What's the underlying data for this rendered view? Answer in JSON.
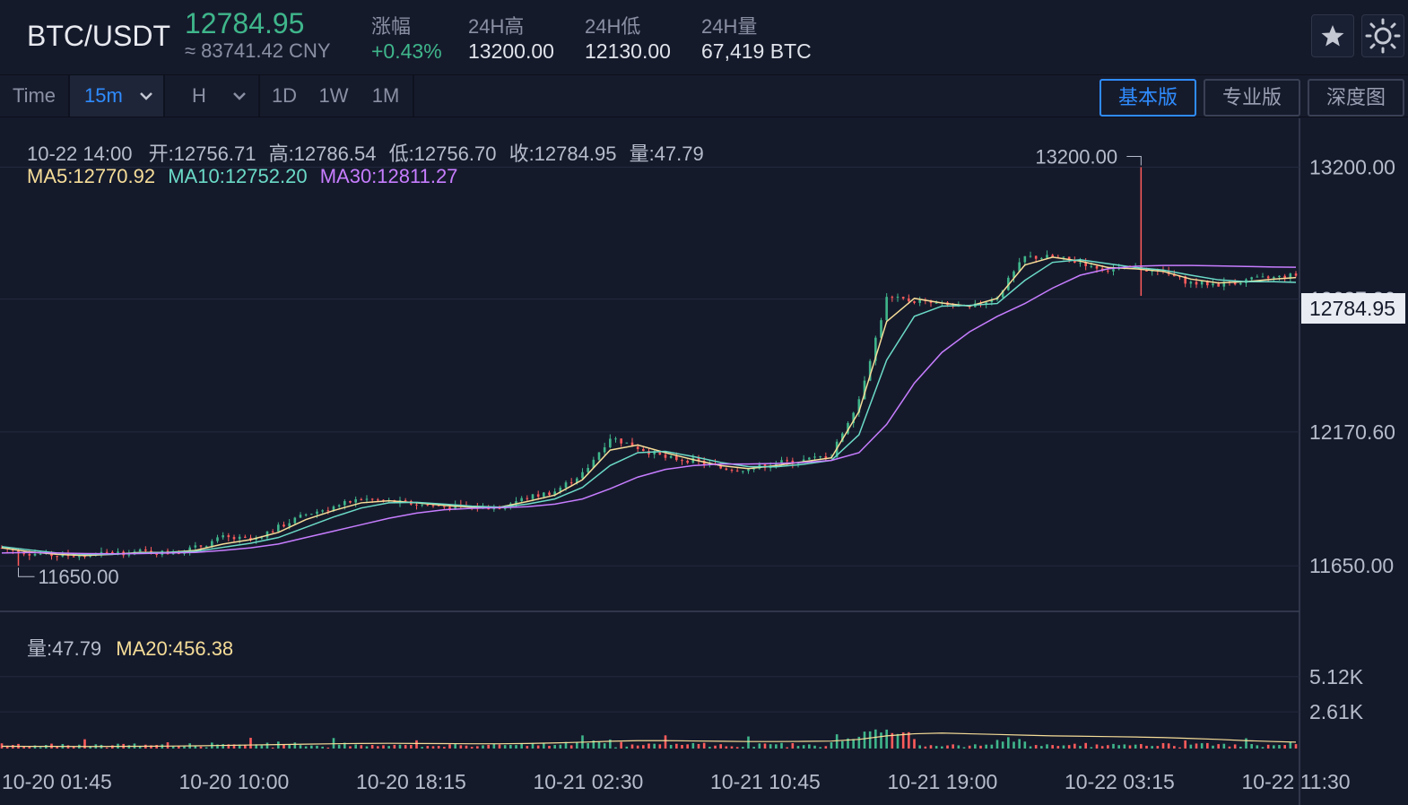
{
  "header": {
    "pair": "BTC/USDT",
    "last_price": "12784.95",
    "cny_price": "≈ 83741.42 CNY",
    "stats": [
      {
        "label": "涨幅",
        "value": "+0.43%",
        "color": "#3fb68b"
      },
      {
        "label": "24H高",
        "value": "13200.00",
        "color": "#e0e3ea"
      },
      {
        "label": "24H低",
        "value": "12130.00",
        "color": "#e0e3ea"
      },
      {
        "label": "24H量",
        "value": "67,419 BTC",
        "color": "#e0e3ea"
      }
    ],
    "favorite_icon": "star-icon",
    "theme_icon": "sun-icon"
  },
  "toolbar": {
    "intervals": [
      "Time",
      "15m",
      "H",
      "1D",
      "1W",
      "1M"
    ],
    "active_interval": "15m",
    "views": [
      "基本版",
      "专业版",
      "深度图"
    ],
    "active_view": "基本版"
  },
  "ohlc_info": {
    "time": "10-22 14:00",
    "open": "开:12756.71",
    "high": "高:12786.54",
    "low": "低:12756.70",
    "close": "收:12784.95",
    "volume": "量:47.79"
  },
  "ma_info": {
    "ma5": "MA5:12770.92",
    "ma10": "MA10:12752.20",
    "ma30": "MA30:12811.27"
  },
  "volume_info": {
    "volume": "量:47.79",
    "ma20": "MA20:456.38"
  },
  "colors": {
    "up": "#3fb68b",
    "down": "#ff5b5b",
    "ma5": "#f6dd98",
    "ma10": "#6bdac7",
    "ma30": "#c77dff",
    "accent": "#2f8cff",
    "background": "#151a2b"
  },
  "chart_data": {
    "type": "line",
    "price_axis_ticks": [
      "13200.00",
      "12687.26",
      "12170.60",
      "11650.00"
    ],
    "current_price_label": "12784.95",
    "volume_axis_ticks": [
      "5.12K",
      "2.61K"
    ],
    "x_ticks": [
      "10-20 01:45",
      "10-20 10:00",
      "10-20 18:15",
      "10-21 02:30",
      "10-21 10:45",
      "10-21 19:00",
      "10-22 03:15",
      "10-22 11:30"
    ],
    "max_marker": "13200.00",
    "min_marker": "11650.00",
    "ylim": [
      11480,
      13390
    ],
    "volume_ylim": [
      0,
      6000
    ],
    "price_path": [
      [
        0,
        11720
      ],
      [
        10,
        11700
      ],
      [
        20,
        11690
      ],
      [
        30,
        11690
      ],
      [
        40,
        11700
      ],
      [
        50,
        11705
      ],
      [
        60,
        11700
      ],
      [
        70,
        11720
      ],
      [
        80,
        11760
      ],
      [
        90,
        11750
      ],
      [
        100,
        11800
      ],
      [
        110,
        11850
      ],
      [
        120,
        11880
      ],
      [
        130,
        11910
      ],
      [
        140,
        11900
      ],
      [
        150,
        11890
      ],
      [
        160,
        11880
      ],
      [
        170,
        11875
      ],
      [
        180,
        11880
      ],
      [
        190,
        11915
      ],
      [
        200,
        11940
      ],
      [
        210,
        12010
      ],
      [
        220,
        12150
      ],
      [
        230,
        12110
      ],
      [
        240,
        12070
      ],
      [
        250,
        12060
      ],
      [
        260,
        12030
      ],
      [
        270,
        12025
      ],
      [
        280,
        12050
      ],
      [
        290,
        12060
      ],
      [
        300,
        12080
      ],
      [
        310,
        12300
      ],
      [
        320,
        12690
      ],
      [
        330,
        12680
      ],
      [
        340,
        12665
      ],
      [
        350,
        12650
      ],
      [
        360,
        12700
      ],
      [
        370,
        12850
      ],
      [
        380,
        12850
      ],
      [
        390,
        12830
      ],
      [
        400,
        12800
      ],
      [
        410,
        12810
      ],
      [
        420,
        12790
      ],
      [
        430,
        12750
      ],
      [
        440,
        12745
      ],
      [
        450,
        12760
      ],
      [
        460,
        12770
      ],
      [
        468,
        12780
      ]
    ],
    "series": [
      {
        "name": "MA5",
        "values": [
          11720,
          11705,
          11695,
          11690,
          11695,
          11702,
          11702,
          11710,
          11735,
          11752,
          11780,
          11830,
          11865,
          11895,
          11903,
          11895,
          11885,
          11878,
          11878,
          11900,
          11925,
          11985,
          12100,
          12120,
          12090,
          12063,
          12040,
          12028,
          12040,
          12055,
          12070,
          12250,
          12600,
          12690,
          12672,
          12660,
          12690,
          12820,
          12850,
          12835,
          12810,
          12805,
          12795,
          12765,
          12750,
          12755,
          12765,
          12771
        ]
      },
      {
        "name": "MA10",
        "values": [
          11725,
          11712,
          11700,
          11695,
          11695,
          11700,
          11702,
          11706,
          11722,
          11738,
          11760,
          11800,
          11840,
          11875,
          11895,
          11897,
          11890,
          11882,
          11878,
          11890,
          11910,
          11955,
          12040,
          12090,
          12095,
          12075,
          12052,
          12036,
          12035,
          12045,
          12060,
          12160,
          12450,
          12620,
          12660,
          12663,
          12670,
          12760,
          12830,
          12840,
          12825,
          12810,
          12800,
          12780,
          12762,
          12755,
          12755,
          12752
        ]
      },
      {
        "name": "MA30",
        "values": [
          11700,
          11702,
          11700,
          11698,
          11697,
          11698,
          11700,
          11702,
          11710,
          11720,
          11735,
          11760,
          11785,
          11810,
          11835,
          11855,
          11868,
          11874,
          11876,
          11880,
          11890,
          11910,
          11950,
          11995,
          12025,
          12040,
          12046,
          12046,
          12048,
          12052,
          12060,
          12090,
          12200,
          12360,
          12480,
          12560,
          12620,
          12670,
          12730,
          12780,
          12805,
          12815,
          12818,
          12818,
          12816,
          12814,
          12812,
          12811
        ]
      }
    ],
    "volume_ma20": [
      160,
      150,
      150,
      145,
      150,
      160,
      170,
      190,
      220,
      250,
      280,
      310,
      340,
      360,
      370,
      360,
      350,
      340,
      340,
      360,
      400,
      450,
      520,
      560,
      560,
      540,
      520,
      500,
      500,
      510,
      530,
      650,
      900,
      1050,
      1100,
      1050,
      1000,
      950,
      900,
      880,
      850,
      820,
      780,
      720,
      650,
      560,
      500,
      456
    ]
  }
}
